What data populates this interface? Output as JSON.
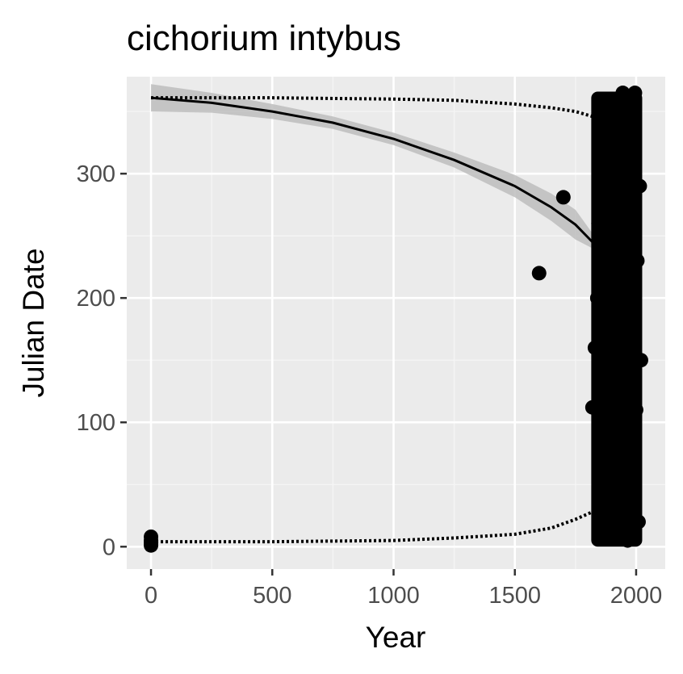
{
  "colors": {
    "panel_background": "#ebebeb",
    "grid_major": "#ffffff",
    "grid_minor": "#f5f5f5",
    "points": "#000000",
    "fit_line": "#000000",
    "ribbon": "#bdbdbd",
    "tick_text": "#4d4d4d"
  },
  "chart_data": {
    "type": "scatter",
    "title": "cichorium intybus",
    "xlabel": "Year",
    "ylabel": "Julian Date",
    "xlim": [
      -100,
      2120
    ],
    "ylim": [
      -18,
      378
    ],
    "x_ticks": [
      0,
      500,
      1000,
      1500,
      2000
    ],
    "x_tick_labels": [
      "0",
      "500",
      "1000",
      "1500",
      "2000"
    ],
    "y_ticks": [
      0,
      100,
      200,
      300
    ],
    "y_tick_labels": [
      "0",
      "100",
      "200",
      "300"
    ],
    "grid": true,
    "legend": "none",
    "points": [
      {
        "x": 0,
        "y": 1
      },
      {
        "x": 0,
        "y": 3
      },
      {
        "x": 0,
        "y": 5
      },
      {
        "x": 0,
        "y": 8
      },
      {
        "x": 1600,
        "y": 220
      },
      {
        "x": 1700,
        "y": 281
      },
      {
        "x": 1820,
        "y": 112
      },
      {
        "x": 1830,
        "y": 160
      },
      {
        "x": 1840,
        "y": 200
      },
      {
        "x": 1845,
        "y": 260
      },
      {
        "x": 1850,
        "y": 230
      },
      {
        "x": 1855,
        "y": 310
      },
      {
        "x": 1860,
        "y": 280
      },
      {
        "x": 1865,
        "y": 127
      },
      {
        "x": 1870,
        "y": 67
      },
      {
        "x": 1875,
        "y": 300
      },
      {
        "x": 1880,
        "y": 340
      },
      {
        "x": 1885,
        "y": 85
      },
      {
        "x": 1890,
        "y": 150
      },
      {
        "x": 1895,
        "y": 245
      },
      {
        "x": 1900,
        "y": 40
      },
      {
        "x": 1905,
        "y": 330
      },
      {
        "x": 1910,
        "y": 180
      },
      {
        "x": 1915,
        "y": 120
      },
      {
        "x": 1920,
        "y": 355
      },
      {
        "x": 1925,
        "y": 60
      },
      {
        "x": 1930,
        "y": 210
      },
      {
        "x": 1935,
        "y": 270
      },
      {
        "x": 1940,
        "y": 25
      },
      {
        "x": 1945,
        "y": 365
      },
      {
        "x": 1950,
        "y": 140
      },
      {
        "x": 1955,
        "y": 95
      },
      {
        "x": 1960,
        "y": 320
      },
      {
        "x": 1965,
        "y": 5
      },
      {
        "x": 1970,
        "y": 250
      },
      {
        "x": 1975,
        "y": 190
      },
      {
        "x": 1980,
        "y": 50
      },
      {
        "x": 1985,
        "y": 300
      },
      {
        "x": 1990,
        "y": 170
      },
      {
        "x": 1995,
        "y": 365
      },
      {
        "x": 2000,
        "y": 110
      },
      {
        "x": 2005,
        "y": 230
      },
      {
        "x": 2010,
        "y": 20
      },
      {
        "x": 2015,
        "y": 290
      },
      {
        "x": 2020,
        "y": 150
      }
    ],
    "point_band": {
      "x_range": [
        1815,
        2025
      ],
      "y_range": [
        0,
        366
      ]
    },
    "upper_dotted_series": [
      {
        "x": 0,
        "y": 361
      },
      {
        "x": 500,
        "y": 361
      },
      {
        "x": 1000,
        "y": 360
      },
      {
        "x": 1250,
        "y": 359
      },
      {
        "x": 1500,
        "y": 356
      },
      {
        "x": 1650,
        "y": 353
      },
      {
        "x": 1750,
        "y": 350
      },
      {
        "x": 1820,
        "y": 346
      },
      {
        "x": 1850,
        "y": 343
      }
    ],
    "lower_dotted_series": [
      {
        "x": 0,
        "y": 4
      },
      {
        "x": 500,
        "y": 4
      },
      {
        "x": 1000,
        "y": 5
      },
      {
        "x": 1250,
        "y": 7
      },
      {
        "x": 1500,
        "y": 10
      },
      {
        "x": 1650,
        "y": 15
      },
      {
        "x": 1750,
        "y": 22
      },
      {
        "x": 1820,
        "y": 28
      },
      {
        "x": 1850,
        "y": 32
      }
    ],
    "fit_line": [
      {
        "x": 0,
        "y": 361
      },
      {
        "x": 250,
        "y": 357
      },
      {
        "x": 500,
        "y": 350
      },
      {
        "x": 750,
        "y": 341
      },
      {
        "x": 1000,
        "y": 328
      },
      {
        "x": 1250,
        "y": 311
      },
      {
        "x": 1500,
        "y": 290
      },
      {
        "x": 1650,
        "y": 273
      },
      {
        "x": 1750,
        "y": 259
      },
      {
        "x": 1820,
        "y": 245
      }
    ],
    "fit_ribbon": [
      {
        "x": 0,
        "lower": 350,
        "upper": 372
      },
      {
        "x": 250,
        "lower": 349,
        "upper": 365
      },
      {
        "x": 500,
        "lower": 344,
        "upper": 356
      },
      {
        "x": 750,
        "lower": 336,
        "upper": 346
      },
      {
        "x": 1000,
        "lower": 323,
        "upper": 333
      },
      {
        "x": 1250,
        "lower": 305,
        "upper": 317
      },
      {
        "x": 1500,
        "lower": 281,
        "upper": 299
      },
      {
        "x": 1650,
        "lower": 262,
        "upper": 284
      },
      {
        "x": 1750,
        "lower": 247,
        "upper": 271
      },
      {
        "x": 1820,
        "lower": 240,
        "upper": 252
      }
    ]
  }
}
